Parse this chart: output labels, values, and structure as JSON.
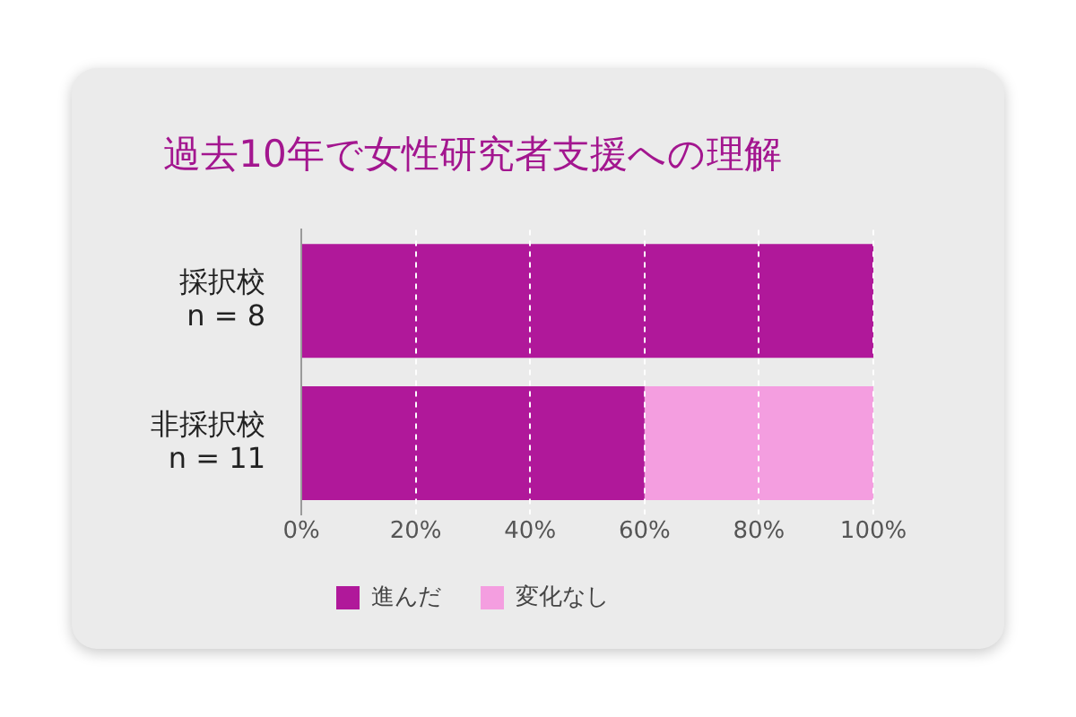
{
  "chart_data": {
    "type": "bar",
    "orientation": "horizontal",
    "stacked": true,
    "title": "過去10年で女性研究者支援への理解",
    "categories": [
      "採択校\nn = 8",
      "非採択校\nn = 11"
    ],
    "series": [
      {
        "name": "進んだ",
        "color": "#b0189a",
        "values": [
          100,
          60
        ]
      },
      {
        "name": "変化なし",
        "color": "#f49ee0",
        "values": [
          0,
          40
        ]
      }
    ],
    "xlim": [
      0,
      100
    ],
    "xticks": [
      {
        "value": 0,
        "label": "0%"
      },
      {
        "value": 20,
        "label": "20%"
      },
      {
        "value": 40,
        "label": "40%"
      },
      {
        "value": 60,
        "label": "60%"
      },
      {
        "value": 80,
        "label": "80%"
      },
      {
        "value": 100,
        "label": "100%"
      }
    ],
    "grid": "x",
    "legend": "bottom"
  }
}
